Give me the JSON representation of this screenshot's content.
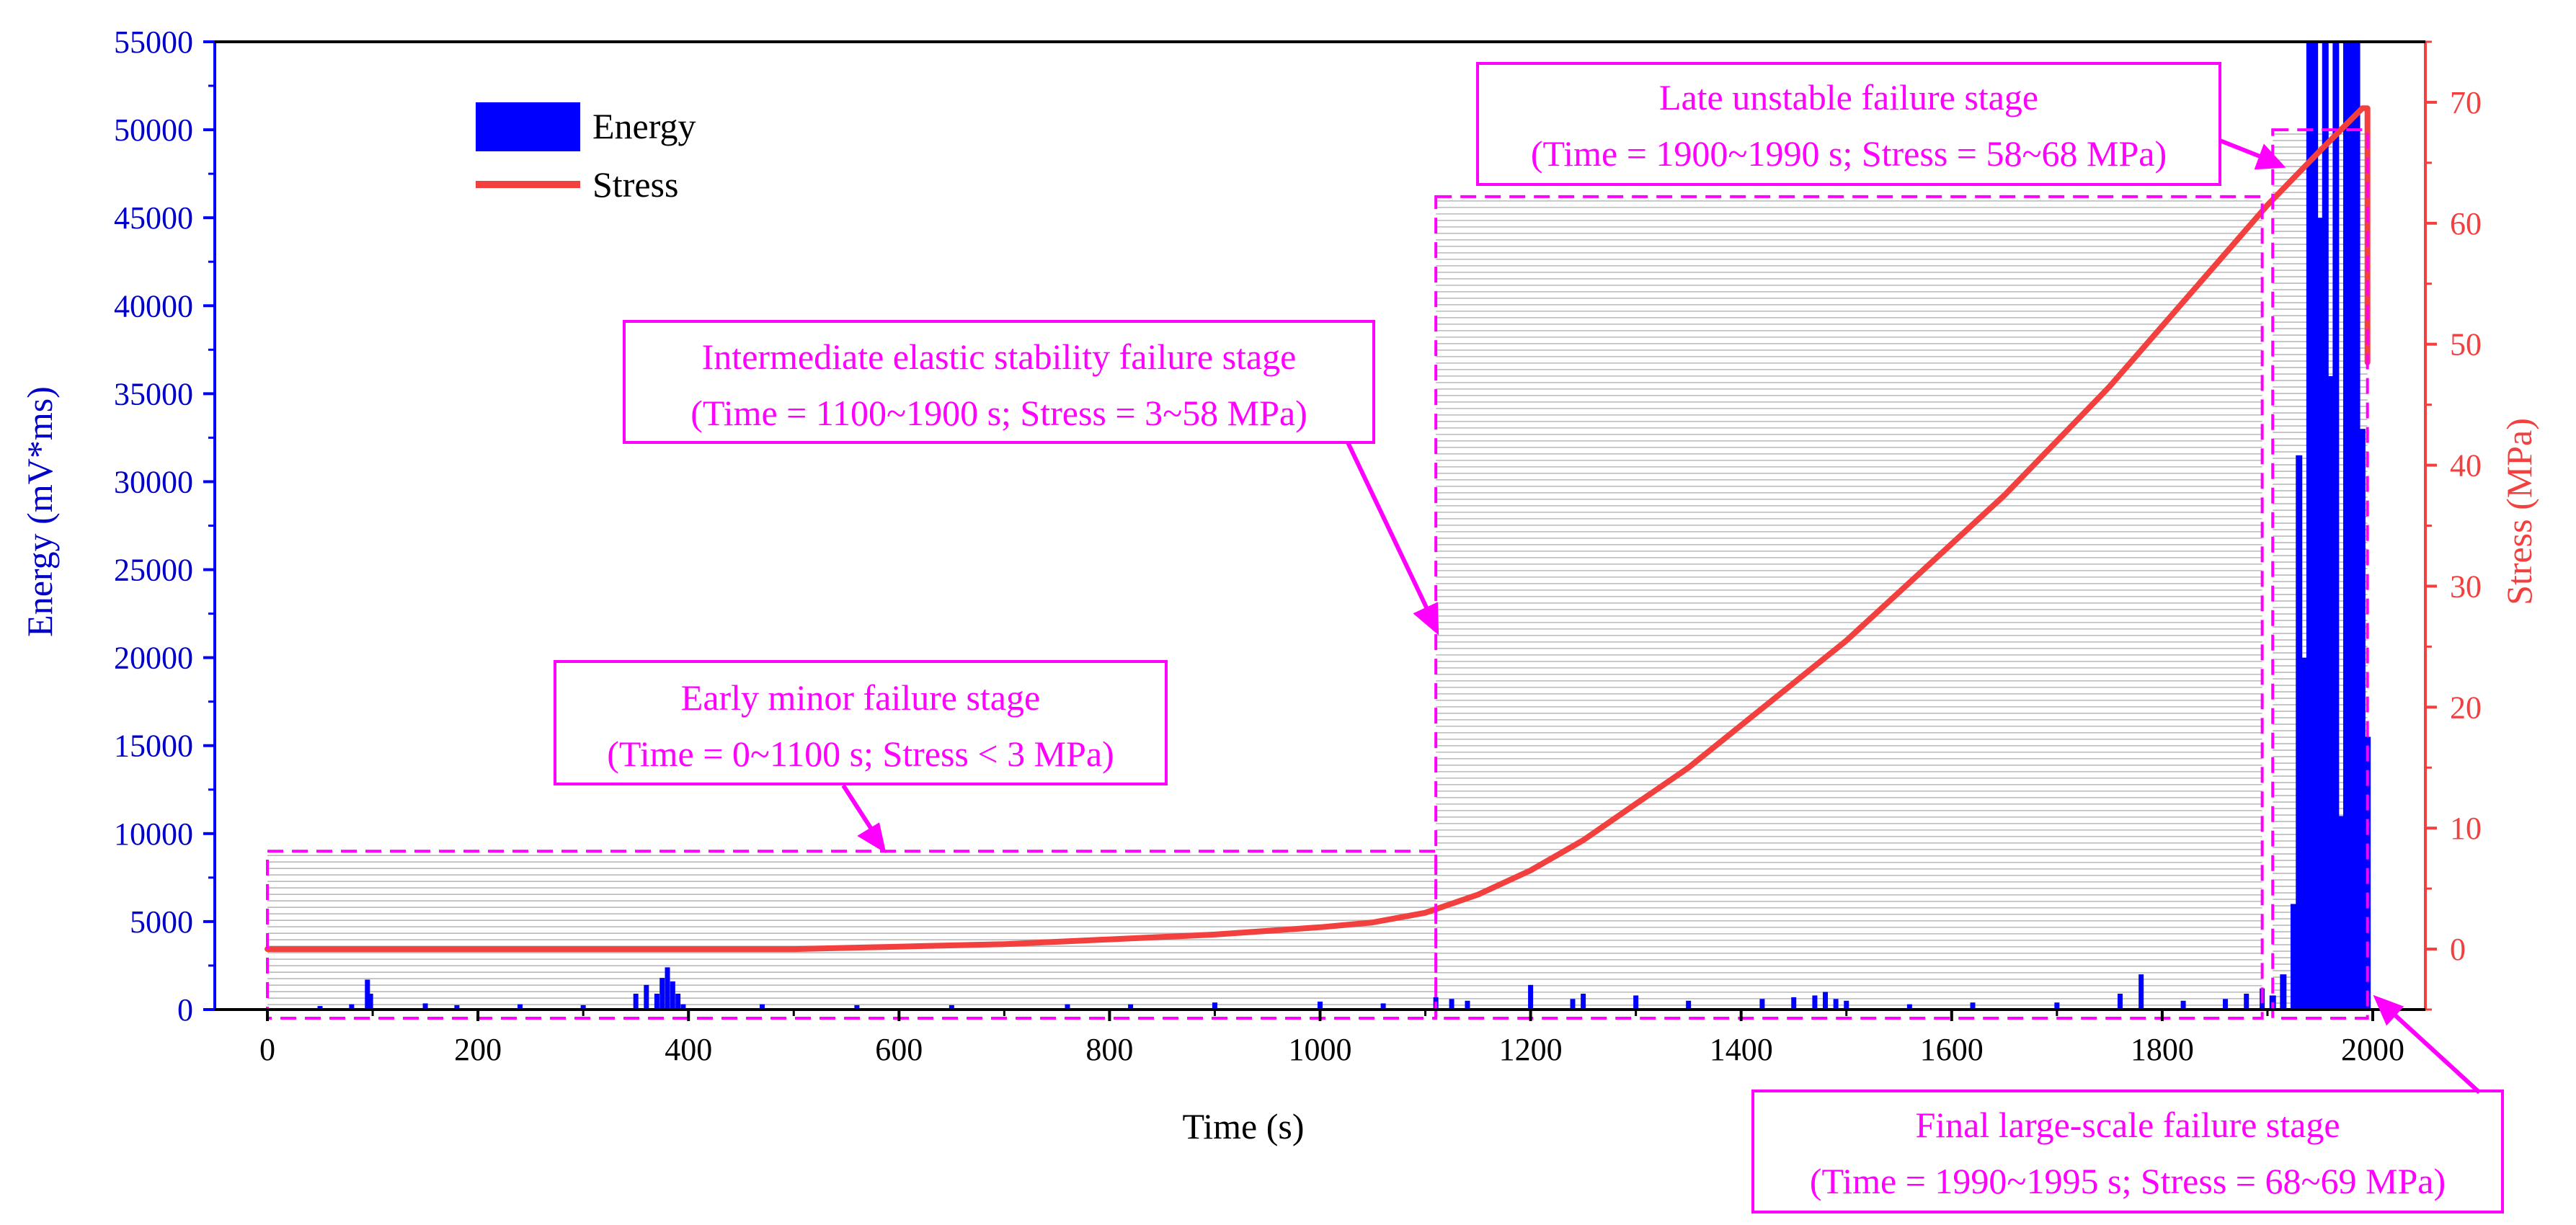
{
  "chart_data": {
    "type": "bar+line",
    "xlabel": "Time (s)",
    "ylabel_left": "Energy (mV*ms)",
    "ylabel_right": "Stress (MPa)",
    "xlim": [
      -50,
      2050
    ],
    "xticks": [
      0,
      200,
      400,
      600,
      800,
      1000,
      1200,
      1400,
      1600,
      1800,
      2000
    ],
    "ylim_left": [
      0,
      55000
    ],
    "yticks_left": [
      0,
      5000,
      10000,
      15000,
      20000,
      25000,
      30000,
      35000,
      40000,
      45000,
      50000,
      55000
    ],
    "ylim_right": [
      -5,
      75
    ],
    "yticks_right": [
      0,
      10,
      20,
      30,
      40,
      50,
      60,
      70
    ],
    "legend": [
      {
        "name": "Energy",
        "color": "#0000ff",
        "kind": "bar"
      },
      {
        "name": "Stress",
        "color": "#f2403f",
        "kind": "line"
      }
    ],
    "series": [
      {
        "name": "Energy",
        "type": "bar",
        "color": "#0000ff",
        "x": [
          50,
          80,
          95,
          98,
          150,
          180,
          240,
          300,
          350,
          360,
          370,
          375,
          380,
          385,
          390,
          395,
          470,
          560,
          650,
          760,
          820,
          900,
          1000,
          1060,
          1110,
          1125,
          1140,
          1200,
          1240,
          1250,
          1300,
          1350,
          1420,
          1450,
          1470,
          1480,
          1490,
          1500,
          1560,
          1620,
          1700,
          1760,
          1780,
          1820,
          1860,
          1880,
          1895,
          1905,
          1915,
          1925,
          1930,
          1935,
          1940,
          1945,
          1950,
          1955,
          1960,
          1965,
          1970,
          1975,
          1980,
          1985,
          1990,
          1995
        ],
        "values": [
          200,
          300,
          1700,
          900,
          350,
          250,
          300,
          250,
          900,
          1400,
          900,
          1800,
          2400,
          1600,
          900,
          300,
          300,
          250,
          250,
          300,
          300,
          400,
          450,
          350,
          700,
          600,
          500,
          1400,
          600,
          900,
          800,
          500,
          600,
          700,
          800,
          1000,
          600,
          500,
          300,
          400,
          400,
          900,
          2000,
          500,
          600,
          900,
          1200,
          800,
          2000,
          6000,
          31500,
          20000,
          55000,
          55000,
          45000,
          55000,
          36000,
          55000,
          11000,
          55000,
          55000,
          55000,
          33000,
          15500
        ]
      },
      {
        "name": "Stress",
        "type": "line",
        "color": "#f2403f",
        "x": [
          0,
          100,
          200,
          300,
          400,
          500,
          600,
          700,
          800,
          900,
          1000,
          1050,
          1100,
          1150,
          1200,
          1250,
          1300,
          1350,
          1400,
          1450,
          1500,
          1550,
          1600,
          1650,
          1700,
          1750,
          1800,
          1850,
          1900,
          1950,
          1990,
          1995,
          1995
        ],
        "values": [
          0,
          0,
          0,
          0,
          0,
          0,
          0.2,
          0.4,
          0.8,
          1.2,
          1.8,
          2.2,
          3.0,
          4.5,
          6.5,
          9.0,
          12.0,
          15.0,
          18.5,
          22.0,
          25.5,
          29.5,
          33.5,
          37.5,
          42.0,
          46.5,
          51.5,
          56.5,
          61.5,
          66.0,
          69.5,
          69.5,
          48.5
        ]
      }
    ],
    "stages": [
      {
        "title": "Early minor failure stage",
        "detail": "(Time = 0~1100 s; Stress < 3 MPa)",
        "x0": 0,
        "x1": 1110,
        "ytop": 9000
      },
      {
        "title": "Intermediate elastic stability failure stage",
        "detail": "(Time = 1100~1900 s; Stress = 3~58 MPa)",
        "x0": 1110,
        "x1": 1895,
        "ytop": 46200
      },
      {
        "title": "Late unstable failure stage",
        "detail": "(Time = 1900~1990 s; Stress = 58~68 MPa)",
        "x0": 1905,
        "x1": 1995,
        "ytop": 50000
      },
      {
        "title": "Final large-scale failure stage",
        "detail": "(Time = 1990~1995 s; Stress = 68~69 MPa)",
        "x0": 1990,
        "x1": 1995,
        "ytop": 0
      }
    ]
  }
}
